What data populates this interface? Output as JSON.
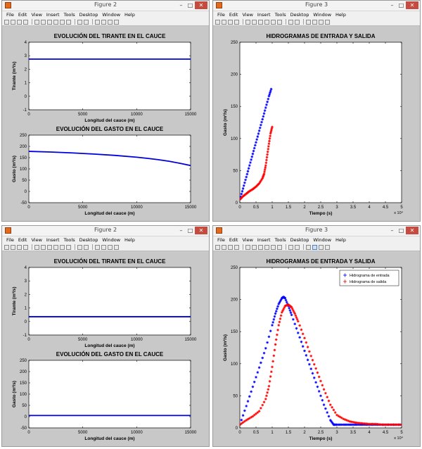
{
  "menu": [
    "File",
    "Edit",
    "View",
    "Insert",
    "Tools",
    "Desktop",
    "Window",
    "Help"
  ],
  "window_controls": {
    "minimize": "–",
    "maximize": "□",
    "close": "✕"
  },
  "colors": {
    "inflow": "#0000ff",
    "outflow": "#ff0000",
    "line": "#0000dd"
  },
  "toolbar_icons": [
    "new-icon",
    "open-icon",
    "save-icon",
    "print-icon",
    "arrow-icon",
    "zoom-in-icon",
    "zoom-out-icon",
    "pan-icon",
    "rotate-icon",
    "datacursor-icon",
    "brush-icon",
    "link-icon",
    "colorbar-icon",
    "legend-icon",
    "hide-icon",
    "show-icon"
  ],
  "windows": [
    {
      "title": "Figure 2",
      "axes": [
        {
          "title": "EVOLUCIÓN DEL TIRANTE EN EL CAUCE",
          "xlabel": "Longitud del cauce (m)",
          "ylabel": "Tirante (m³/s)",
          "xlim": [
            0,
            15000
          ],
          "ylim": [
            -1,
            4
          ],
          "xticks": [
            0,
            5000,
            10000,
            15000
          ],
          "yticks": [
            -1,
            0,
            1,
            2,
            3,
            4
          ],
          "series": [
            {
              "type": "line",
              "x": [
                0,
                15000
              ],
              "y": [
                2.75,
                2.75
              ]
            }
          ]
        },
        {
          "title": "EVOLUCIÓN DEL GASTO EN EL CAUCE",
          "xlabel": "Longitud del cauce (m)",
          "ylabel": "Gasto (m³/s)",
          "xlim": [
            0,
            15000
          ],
          "ylim": [
            -50,
            250
          ],
          "xticks": [
            0,
            5000,
            10000,
            15000
          ],
          "yticks": [
            -50,
            0,
            50,
            100,
            150,
            200,
            250
          ],
          "series": [
            {
              "type": "line",
              "x": [
                0,
                2000,
                4000,
                6000,
                8000,
                10000,
                11000,
                12000,
                13000,
                14000,
                15000
              ],
              "y": [
                178,
                175,
                171,
                166,
                160,
                152,
                147,
                141,
                134,
                125,
                115
              ]
            }
          ]
        }
      ]
    },
    {
      "title": "Figure 3",
      "axes": [
        {
          "title": "HIDROGRAMAS DE ENTRADA Y SALIDA",
          "xlabel": "Tiempo (s)",
          "ylabel": "Gasto (m³/s)",
          "xlim": [
            0,
            5
          ],
          "ylim": [
            0,
            250
          ],
          "xticks": [
            0,
            0.5,
            1,
            1.5,
            2,
            2.5,
            3,
            3.5,
            4,
            4.5,
            5
          ],
          "yticks": [
            0,
            50,
            100,
            150,
            200,
            250
          ],
          "x_multiplier": "x 10⁴",
          "series": [
            {
              "type": "scatter",
              "color": "inflow",
              "x": [
                0,
                0.1,
                0.2,
                0.3,
                0.4,
                0.5,
                0.6,
                0.7,
                0.8,
                0.9,
                0.97
              ],
              "y": [
                5,
                22,
                40,
                58,
                76,
                94,
                112,
                130,
                148,
                166,
                177
              ]
            },
            {
              "type": "scatter",
              "color": "outflow",
              "x": [
                0,
                0.1,
                0.2,
                0.3,
                0.4,
                0.5,
                0.6,
                0.7,
                0.75,
                0.8,
                0.85,
                0.9,
                0.95,
                1.0
              ],
              "y": [
                5,
                10,
                14,
                18,
                21,
                25,
                30,
                38,
                45,
                58,
                75,
                92,
                108,
                118
              ]
            }
          ]
        }
      ]
    },
    {
      "title": "Figure 2",
      "axes": [
        {
          "title": "EVOLUCIÓN DEL TIRANTE EN EL CAUCE",
          "xlabel": "Longitud del cauce (m)",
          "ylabel": "Tirante (m³/s)",
          "xlim": [
            0,
            15000
          ],
          "ylim": [
            -1,
            4
          ],
          "xticks": [
            0,
            5000,
            10000,
            15000
          ],
          "yticks": [
            -1,
            0,
            1,
            2,
            3,
            4
          ],
          "series": [
            {
              "type": "line",
              "x": [
                0,
                15000
              ],
              "y": [
                0.35,
                0.35
              ]
            }
          ]
        },
        {
          "title": "EVOLUCIÓN DEL GASTO EN EL CAUCE",
          "xlabel": "Longitud del cauce (m)",
          "ylabel": "Gasto (m³/s)",
          "xlim": [
            0,
            15000
          ],
          "ylim": [
            -50,
            250
          ],
          "xticks": [
            0,
            5000,
            10000,
            15000
          ],
          "yticks": [
            -50,
            0,
            50,
            100,
            150,
            200,
            250
          ],
          "series": [
            {
              "type": "line",
              "x": [
                0,
                15000
              ],
              "y": [
                5,
                5
              ]
            }
          ]
        }
      ]
    },
    {
      "title": "Figure 3",
      "axes": [
        {
          "title": "HIDROGRAMAS DE ENTRADA Y SALIDA",
          "xlabel": "Tiempo (s)",
          "ylabel": "Gasto (m³/s)",
          "xlim": [
            0,
            5
          ],
          "ylim": [
            0,
            250
          ],
          "xticks": [
            0,
            0.5,
            1,
            1.5,
            2,
            2.5,
            3,
            3.5,
            4,
            4.5,
            5
          ],
          "yticks": [
            0,
            50,
            100,
            150,
            200,
            250
          ],
          "x_multiplier": "x 10⁴",
          "legend": [
            "Hidrograma de entrada",
            "Hidrograma de salida"
          ],
          "series": [
            {
              "type": "scatter",
              "color": "inflow",
              "x": [
                0,
                0.2,
                0.4,
                0.6,
                0.8,
                1.0,
                1.1,
                1.2,
                1.3,
                1.35,
                1.4,
                1.5,
                1.6,
                1.8,
                2.0,
                2.2,
                2.4,
                2.6,
                2.8,
                2.9,
                3.0,
                3.2,
                3.4,
                3.6,
                3.8,
                4.0,
                4.2,
                4.4,
                4.6,
                4.8,
                5.0
              ],
              "y": [
                5,
                34,
                64,
                94,
                124,
                160,
                178,
                193,
                202,
                204,
                202,
                190,
                176,
                148,
                120,
                92,
                64,
                36,
                12,
                5,
                5,
                5,
                5,
                5,
                5,
                5,
                5,
                5,
                5,
                5,
                5
              ]
            },
            {
              "type": "scatter",
              "color": "outflow",
              "x": [
                0,
                0.2,
                0.4,
                0.6,
                0.8,
                0.9,
                1.0,
                1.1,
                1.2,
                1.3,
                1.4,
                1.5,
                1.6,
                1.7,
                1.8,
                2.0,
                2.2,
                2.4,
                2.6,
                2.8,
                3.0,
                3.2,
                3.4,
                3.6,
                3.8,
                4.0,
                4.2,
                4.4,
                4.6,
                4.8,
                5.0
              ],
              "y": [
                5,
                12,
                18,
                26,
                45,
                65,
                95,
                130,
                160,
                180,
                190,
                192,
                188,
                178,
                166,
                140,
                112,
                86,
                60,
                36,
                20,
                14,
                10,
                8,
                7,
                6,
                6,
                5,
                5,
                5,
                5
              ]
            }
          ]
        }
      ]
    }
  ]
}
